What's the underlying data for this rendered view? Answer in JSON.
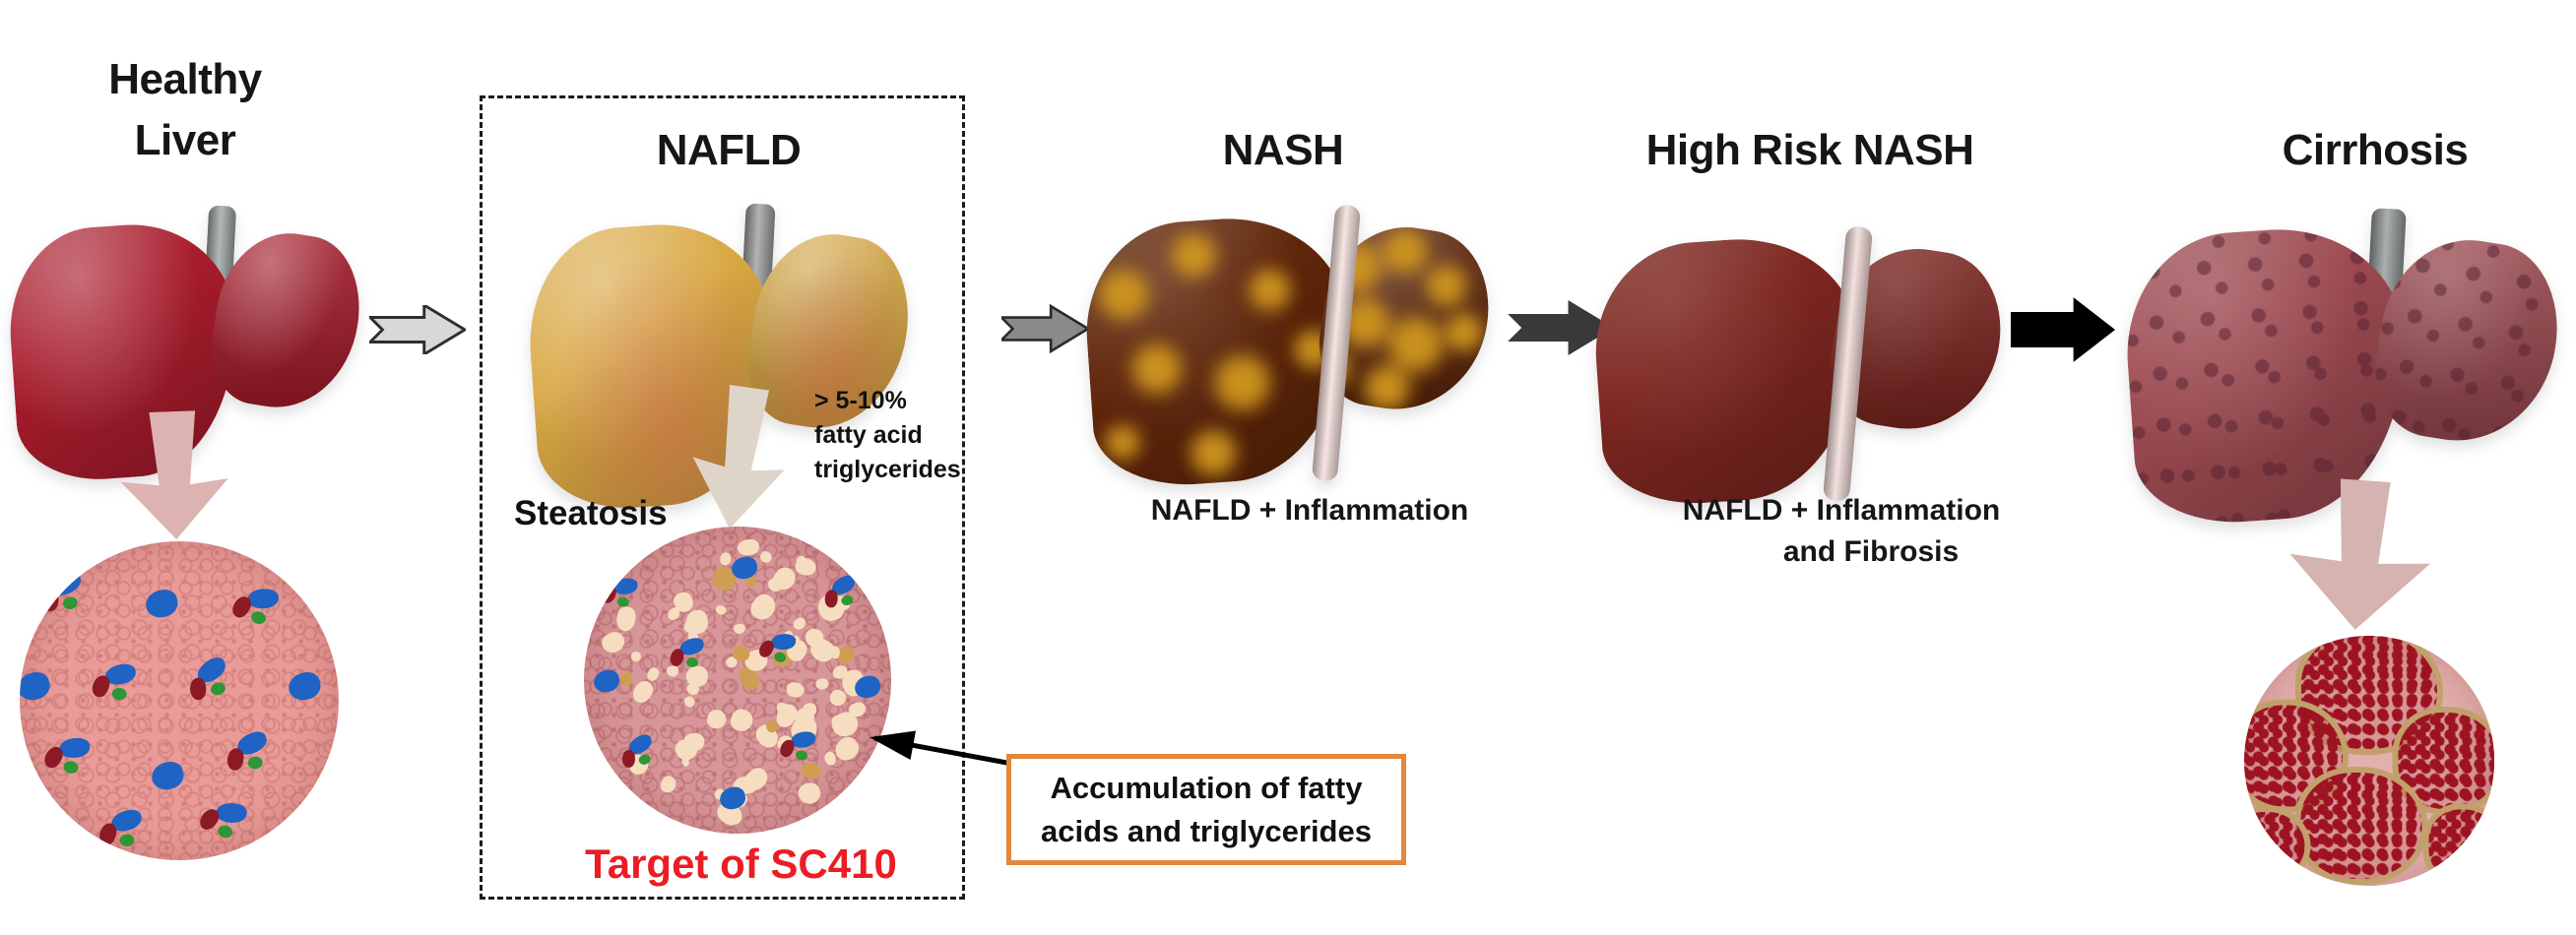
{
  "diagram": {
    "stages": [
      {
        "key": "healthy-liver",
        "title": "Healthy\nLiver"
      },
      {
        "key": "nafld",
        "title": "NAFLD",
        "sub_label": "Steatosis",
        "note": "> 5-10%\nfatty acid\ntriglycerides",
        "target_label": "Target of SC410",
        "target_color": "#ec1c24"
      },
      {
        "key": "nash",
        "title": "NASH",
        "caption": "NAFLD + Inflammation"
      },
      {
        "key": "high-risk-nash",
        "title": "High Risk NASH",
        "caption_line1": "NAFLD + Inflammation",
        "caption_line2": "and Fibrosis"
      },
      {
        "key": "cirrhosis",
        "title": "Cirrhosis"
      }
    ],
    "callout": {
      "text": "Accumulation of fatty\nacids and triglycerides",
      "border_color": "#e2873b"
    },
    "liver_details": {
      "healthy": {
        "base": "#a81c2c",
        "band": "#9aa0a0"
      },
      "nafld": {
        "base": "#d9a843",
        "band": "#9a9a9a"
      },
      "nash": {
        "base": "#60260a",
        "band": "#f2dcd8",
        "spot": "#d0971f"
      },
      "high_risk": {
        "base": "#7d2620",
        "band": "#efd7d4"
      },
      "cirrhosis": {
        "base": "#9c4a50",
        "band": "#8f9494",
        "dot": "#572031"
      }
    },
    "micro_circles": {
      "healthy": {
        "bg": "#e89b98",
        "texture": "#d4807c",
        "cell_blue": "#1f63c4",
        "cell_red": "#8c1a24",
        "cell_green": "#2e9636"
      },
      "nafld": {
        "bg": "#d79699",
        "texture": "#c07679",
        "vacuole": "#f6ddc0",
        "vacuole_alt": "#cf9e55",
        "cell_blue": "#1f63c4",
        "cell_red": "#8c1a24",
        "cell_green": "#2e9636"
      },
      "cirrhosis": {
        "bg": "#e2b0ad",
        "cells": "#9e1322",
        "septa": "#c2a06b"
      }
    },
    "down_arrow_colors": {
      "healthy": "#dcb3b1",
      "nafld": "#ded5c8",
      "cirrhosis": "#d5b3b1"
    },
    "progression_arrow_colors": [
      "#d8d8d8",
      "#8a8a8a",
      "#3a3a3a",
      "#000000"
    ],
    "annotation_arrow_color": "#000000"
  }
}
